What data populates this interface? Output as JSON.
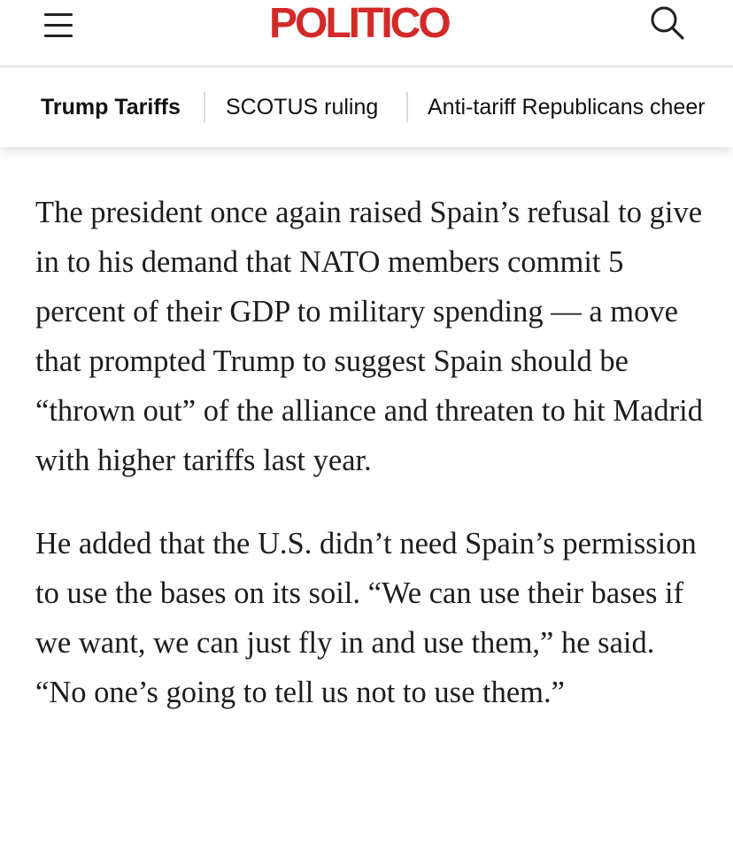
{
  "header": {
    "logo_text": "POLITICO",
    "logo_color": "#d22a28",
    "menu_icon": "hamburger-menu-icon",
    "search_icon": "search-icon"
  },
  "topics": [
    {
      "label": "Trump Tariffs",
      "active": true
    },
    {
      "label": "SCOTUS ruling",
      "active": false
    },
    {
      "label": "Anti-tariff Republicans cheer",
      "active": false
    }
  ],
  "article": {
    "paragraphs": [
      "The president once again raised Spain’s refusal to give in to his demand that NATO members commit 5 percent of their GDP to military spending — a move that prompted Trump to suggest Spain should be “thrown out” of the alliance and threaten to hit Madrid with higher tariffs last year.",
      "He added that the U.S. didn’t need Spain’s permission to use the bases on its soil. “We can use their bases if we want, we can just fly in and use them,” he said. “No one’s going to tell us not to use them.”"
    ]
  }
}
